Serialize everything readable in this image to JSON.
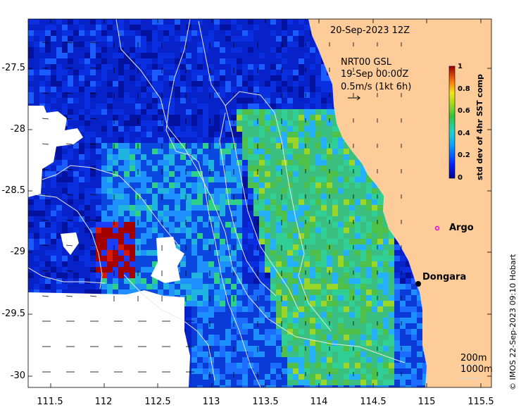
{
  "map": {
    "timestamp": "20-Sep-2023 12Z",
    "current_source": "NRT00 GSL",
    "current_time": "19-Sep 00:00Z",
    "vector_scale_label": "0.5m/s (1kt 6h)",
    "colorbar": {
      "label": "std dev of 4hr SST comp",
      "ticks": [
        "1",
        "0.8",
        "0.6",
        "0.4",
        "0.2",
        "0"
      ],
      "range": [
        0,
        1
      ]
    },
    "x_ticks": [
      "111.5",
      "112",
      "112.5",
      "113",
      "113.5",
      "114",
      "114.5",
      "115",
      "115.5"
    ],
    "y_ticks": [
      "-27.5",
      "-28",
      "-28.5",
      "-29",
      "-29.5",
      "-30"
    ],
    "x_range": [
      111.3,
      115.6
    ],
    "y_range": [
      -30.1,
      -27.1
    ],
    "places": [
      {
        "name": "Argo",
        "lon": 115.05,
        "lat": -28.87
      },
      {
        "name": "Dongara",
        "lon": 114.93,
        "lat": -29.25
      }
    ],
    "depth_contours": [
      "200m",
      "1000m"
    ],
    "credit": "© IMOS 22-Sep-2023 09:10 Hobart",
    "colors": {
      "land": "#fdcc98",
      "coast_point": "#000000",
      "argo_marker": "#e000e0"
    }
  }
}
